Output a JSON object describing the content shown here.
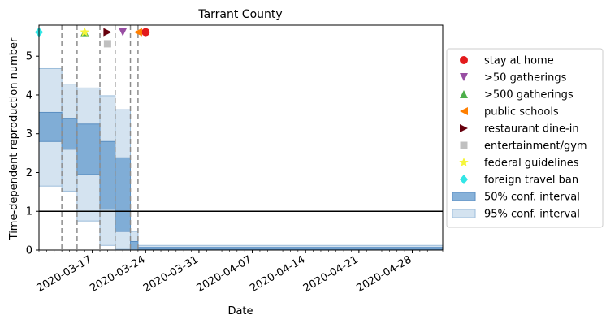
{
  "chart_data": {
    "type": "area",
    "title": "Tarrant County",
    "xlabel": "Date",
    "ylabel": "Time-dependent reproduction number",
    "xlim": [
      "2020-03-10",
      "2020-05-02"
    ],
    "ylim": [
      0,
      5.8
    ],
    "yticks": [
      0,
      1,
      2,
      3,
      4,
      5
    ],
    "xticks": [
      "2020-03-17",
      "2020-03-24",
      "2020-03-31",
      "2020-04-07",
      "2020-04-14",
      "2020-04-21",
      "2020-04-28"
    ],
    "reference_line": {
      "y": 1,
      "color": "#000000"
    },
    "ci50": {
      "label": "50% conf. interval",
      "color": "#6a9fcf",
      "segments": [
        {
          "start": "2020-03-10",
          "end": "2020-03-13",
          "low": 2.8,
          "high": 3.55
        },
        {
          "start": "2020-03-13",
          "end": "2020-03-15",
          "low": 2.6,
          "high": 3.4
        },
        {
          "start": "2020-03-15",
          "end": "2020-03-18",
          "low": 1.95,
          "high": 3.25
        },
        {
          "start": "2020-03-18",
          "end": "2020-03-20",
          "low": 1.05,
          "high": 2.8
        },
        {
          "start": "2020-03-20",
          "end": "2020-03-22",
          "low": 0.48,
          "high": 2.38
        },
        {
          "start": "2020-03-22",
          "end": "2020-03-23",
          "low": 0.0,
          "high": 0.22
        },
        {
          "start": "2020-03-23",
          "end": "2020-05-02",
          "low": 0.02,
          "high": 0.07
        }
      ]
    },
    "ci95": {
      "label": "95% conf. interval",
      "color": "#b7d0e6",
      "segments": [
        {
          "start": "2020-03-10",
          "end": "2020-03-13",
          "low": 1.65,
          "high": 4.68
        },
        {
          "start": "2020-03-13",
          "end": "2020-03-15",
          "low": 1.52,
          "high": 4.28
        },
        {
          "start": "2020-03-15",
          "end": "2020-03-18",
          "low": 0.75,
          "high": 4.18
        },
        {
          "start": "2020-03-18",
          "end": "2020-03-20",
          "low": 0.12,
          "high": 3.98
        },
        {
          "start": "2020-03-20",
          "end": "2020-03-22",
          "low": 0.02,
          "high": 3.62
        },
        {
          "start": "2020-03-22",
          "end": "2020-03-23",
          "low": 0.0,
          "high": 0.48
        },
        {
          "start": "2020-03-23",
          "end": "2020-05-02",
          "low": 0.0,
          "high": 0.12
        }
      ]
    },
    "interventions": [
      {
        "label": "stay at home",
        "date": "2020-03-24",
        "y": 5.62,
        "marker": "circle",
        "color": "#e31a1c"
      },
      {
        "label": ">50 gatherings",
        "date": "2020-03-21",
        "y": 5.62,
        "marker": "triangle-down",
        "color": "#984ea3"
      },
      {
        "label": ">500 gatherings",
        "date": "2020-03-16",
        "y": 5.62,
        "marker": "triangle-up",
        "color": "#4daf4a"
      },
      {
        "label": "public schools",
        "date": "2020-03-23",
        "y": 5.62,
        "marker": "triangle-left",
        "color": "#ff7f00"
      },
      {
        "label": "restaurant dine-in",
        "date": "2020-03-19",
        "y": 5.62,
        "marker": "triangle-right",
        "color": "#67000d"
      },
      {
        "label": "entertainment/gym",
        "date": "2020-03-19",
        "y": 5.32,
        "marker": "square",
        "color": "#c0c0c0"
      },
      {
        "label": "federal guidelines",
        "date": "2020-03-16",
        "y": 5.62,
        "marker": "star",
        "color": "#f5f53a"
      },
      {
        "label": "foreign travel ban",
        "date": "2020-03-10",
        "y": 5.62,
        "marker": "diamond",
        "color": "#33e6e6"
      }
    ],
    "dashed_lines": [
      "2020-03-13",
      "2020-03-15",
      "2020-03-18",
      "2020-03-20",
      "2020-03-22",
      "2020-03-23"
    ],
    "legend_placement": "right",
    "grid": false
  }
}
